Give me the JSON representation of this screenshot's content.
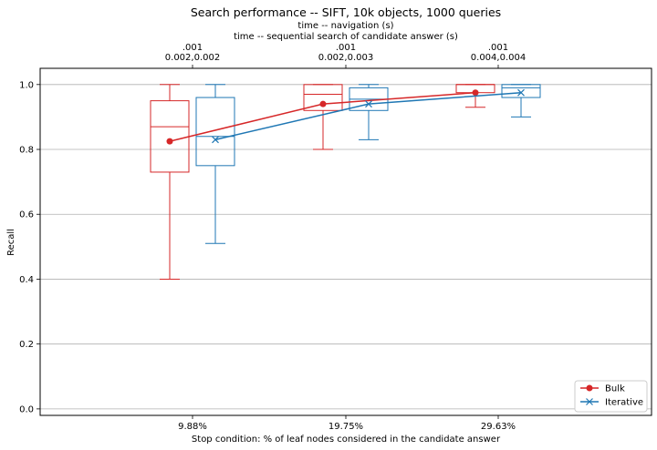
{
  "chart_data": {
    "type": "box",
    "title": "Search performance -- SIFT, 10k objects, 1000 queries",
    "top_axis_lines": [
      "time -- navigation (s)",
      "time -- sequential search of candidate answer (s)"
    ],
    "top_tick_labels": [
      {
        "line1": ".001",
        "line2": "0.002,0.002"
      },
      {
        "line1": ".001",
        "line2": "0.002,0.003"
      },
      {
        "line1": ".001",
        "line2": "0.004,0.004"
      }
    ],
    "xlabel": "Stop condition: % of leaf nodes considered in the candidate answer",
    "ylabel": "Recall",
    "categories": [
      "9.88%",
      "19.75%",
      "29.63%"
    ],
    "ylim": [
      -0.02,
      1.05
    ],
    "yticks": [
      "0.0",
      "0.2",
      "0.4",
      "0.6",
      "0.8",
      "1.0"
    ],
    "grid": "horizontal",
    "legend_position": "bottom-right",
    "series": [
      {
        "name": "Bulk",
        "color": "#d62728",
        "marker": "circle",
        "means": [
          0.825,
          0.94,
          0.975
        ],
        "boxes": [
          {
            "whisker_low": 0.4,
            "q1": 0.73,
            "median": 0.87,
            "q3": 0.95,
            "whisker_high": 1.0
          },
          {
            "whisker_low": 0.8,
            "q1": 0.92,
            "median": 0.97,
            "q3": 1.0,
            "whisker_high": 1.0
          },
          {
            "whisker_low": 0.93,
            "q1": 0.975,
            "median": 1.0,
            "q3": 1.0,
            "whisker_high": 1.0
          }
        ]
      },
      {
        "name": "Iterative",
        "color": "#1f77b4",
        "marker": "x",
        "means": [
          0.83,
          0.94,
          0.975
        ],
        "boxes": [
          {
            "whisker_low": 0.51,
            "q1": 0.75,
            "median": 0.84,
            "q3": 0.96,
            "whisker_high": 1.0
          },
          {
            "whisker_low": 0.83,
            "q1": 0.92,
            "median": 0.955,
            "q3": 0.99,
            "whisker_high": 1.0
          },
          {
            "whisker_low": 0.9,
            "q1": 0.96,
            "median": 0.99,
            "q3": 1.0,
            "whisker_high": 1.0
          }
        ]
      }
    ]
  }
}
